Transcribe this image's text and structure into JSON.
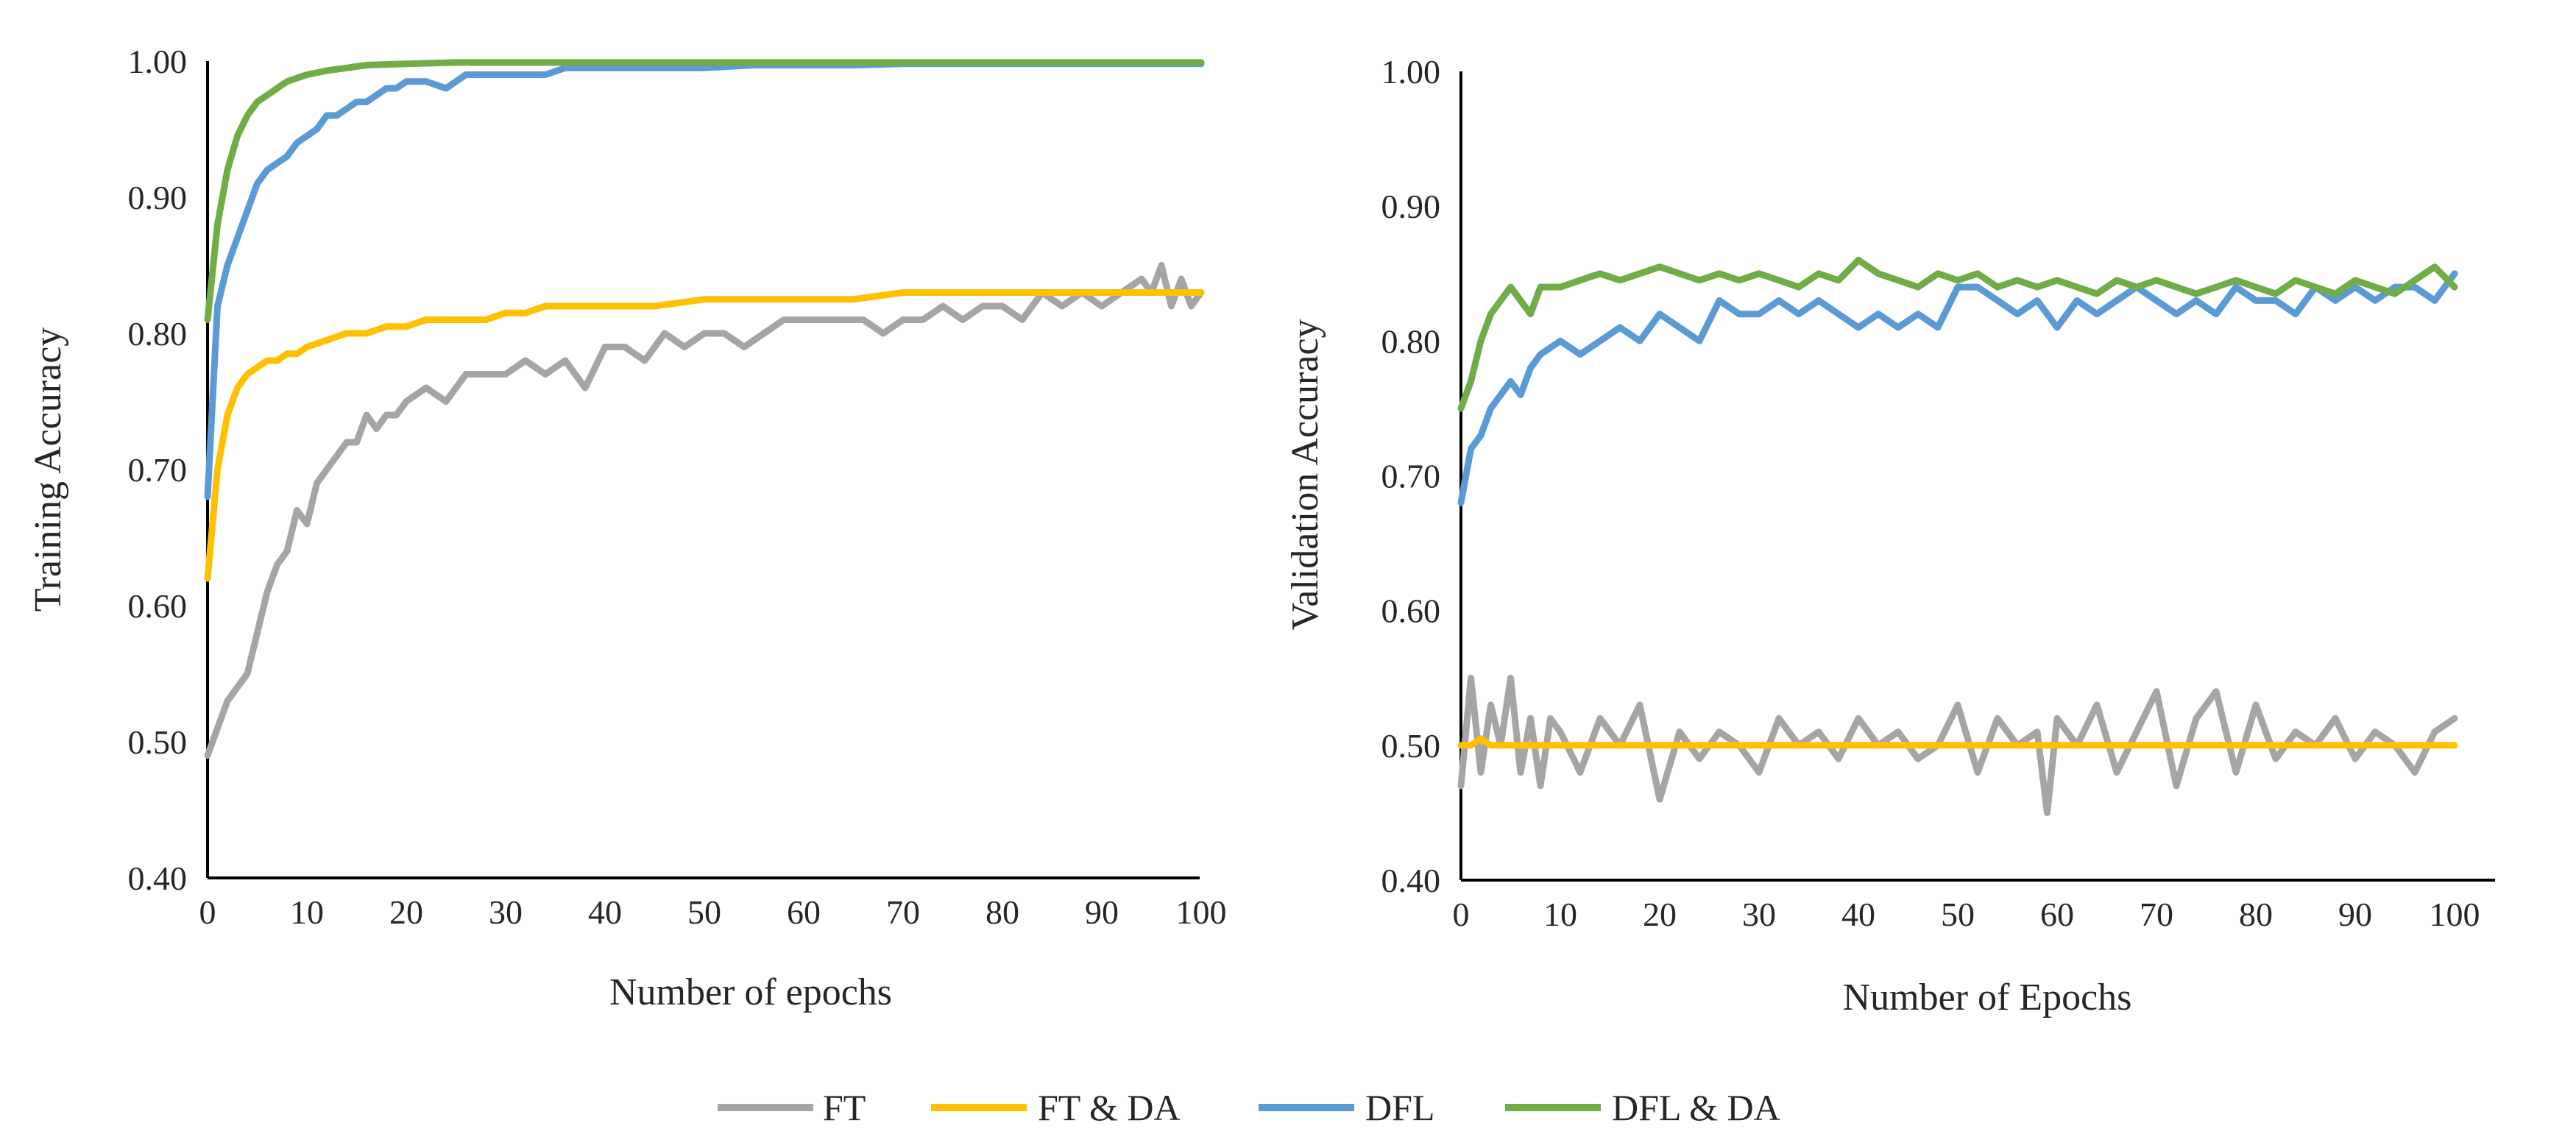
{
  "chart_data": [
    {
      "type": "line",
      "xlabel": "Number of epochs",
      "ylabel": "Training Accuracy",
      "xlim": [
        0,
        100
      ],
      "ylim": [
        0.4,
        1.0
      ],
      "xticks": [
        "0",
        "10",
        "20",
        "30",
        "40",
        "50",
        "60",
        "70",
        "80",
        "90",
        "100"
      ],
      "yticks": [
        "0.40",
        "0.50",
        "0.60",
        "0.70",
        "0.80",
        "0.90",
        "1.00"
      ],
      "grid": false,
      "series": [
        {
          "name": "FT",
          "color": "#a5a5a5",
          "x": [
            0,
            1,
            2,
            3,
            4,
            5,
            6,
            7,
            8,
            9,
            10,
            11,
            12,
            13,
            14,
            15,
            16,
            17,
            18,
            19,
            20,
            22,
            24,
            26,
            28,
            30,
            32,
            34,
            36,
            38,
            40,
            42,
            44,
            46,
            48,
            50,
            52,
            54,
            56,
            58,
            60,
            62,
            64,
            66,
            68,
            70,
            72,
            74,
            76,
            78,
            80,
            82,
            84,
            86,
            88,
            90,
            92,
            94,
            95,
            96,
            97,
            98,
            99,
            100
          ],
          "values": [
            0.49,
            0.51,
            0.53,
            0.54,
            0.55,
            0.58,
            0.61,
            0.63,
            0.64,
            0.67,
            0.66,
            0.69,
            0.7,
            0.71,
            0.72,
            0.72,
            0.74,
            0.73,
            0.74,
            0.74,
            0.75,
            0.76,
            0.75,
            0.77,
            0.77,
            0.77,
            0.78,
            0.77,
            0.78,
            0.76,
            0.79,
            0.79,
            0.78,
            0.8,
            0.79,
            0.8,
            0.8,
            0.79,
            0.8,
            0.81,
            0.81,
            0.81,
            0.81,
            0.81,
            0.8,
            0.81,
            0.81,
            0.82,
            0.81,
            0.82,
            0.82,
            0.81,
            0.83,
            0.82,
            0.83,
            0.82,
            0.83,
            0.84,
            0.83,
            0.85,
            0.82,
            0.84,
            0.82,
            0.83
          ]
        },
        {
          "name": "FT & DA",
          "color": "#ffc000",
          "x": [
            0,
            1,
            2,
            3,
            4,
            5,
            6,
            7,
            8,
            9,
            10,
            12,
            14,
            16,
            18,
            20,
            22,
            24,
            26,
            28,
            30,
            32,
            34,
            36,
            38,
            40,
            45,
            50,
            55,
            60,
            65,
            70,
            75,
            80,
            85,
            90,
            95,
            100
          ],
          "values": [
            0.62,
            0.7,
            0.74,
            0.76,
            0.77,
            0.775,
            0.78,
            0.78,
            0.785,
            0.785,
            0.79,
            0.795,
            0.8,
            0.8,
            0.805,
            0.805,
            0.81,
            0.81,
            0.81,
            0.81,
            0.815,
            0.815,
            0.82,
            0.82,
            0.82,
            0.82,
            0.82,
            0.825,
            0.825,
            0.825,
            0.825,
            0.83,
            0.83,
            0.83,
            0.83,
            0.83,
            0.83,
            0.83
          ]
        },
        {
          "name": "DFL",
          "color": "#5b9bd5",
          "x": [
            0,
            1,
            2,
            3,
            4,
            5,
            6,
            7,
            8,
            9,
            10,
            11,
            12,
            13,
            14,
            15,
            16,
            17,
            18,
            19,
            20,
            22,
            24,
            26,
            28,
            30,
            32,
            34,
            36,
            38,
            40,
            45,
            50,
            55,
            60,
            65,
            70,
            75,
            80,
            85,
            90,
            95,
            100
          ],
          "values": [
            0.68,
            0.82,
            0.85,
            0.87,
            0.89,
            0.91,
            0.92,
            0.925,
            0.93,
            0.94,
            0.945,
            0.95,
            0.96,
            0.96,
            0.965,
            0.97,
            0.97,
            0.975,
            0.98,
            0.98,
            0.985,
            0.985,
            0.98,
            0.99,
            0.99,
            0.99,
            0.99,
            0.99,
            0.995,
            0.995,
            0.995,
            0.995,
            0.995,
            0.997,
            0.997,
            0.997,
            0.998,
            0.998,
            0.998,
            0.998,
            0.998,
            0.998,
            0.998
          ]
        },
        {
          "name": "DFL & DA",
          "color": "#70ad47",
          "x": [
            0,
            1,
            2,
            3,
            4,
            5,
            6,
            7,
            8,
            10,
            12,
            14,
            16,
            20,
            25,
            30,
            40,
            50,
            60,
            70,
            80,
            90,
            100
          ],
          "values": [
            0.81,
            0.88,
            0.92,
            0.945,
            0.96,
            0.97,
            0.975,
            0.98,
            0.985,
            0.99,
            0.993,
            0.995,
            0.997,
            0.998,
            0.999,
            0.999,
            0.999,
            0.999,
            0.999,
            0.999,
            0.999,
            0.999,
            0.999
          ]
        }
      ]
    },
    {
      "type": "line",
      "xlabel": "Number of Epochs",
      "ylabel": "Validation Accuracy",
      "xlim": [
        0,
        100
      ],
      "ylim": [
        0.4,
        1.0
      ],
      "xticks": [
        "0",
        "10",
        "20",
        "30",
        "40",
        "50",
        "60",
        "70",
        "80",
        "90",
        "100"
      ],
      "yticks": [
        "0.40",
        "0.50",
        "0.60",
        "0.70",
        "0.80",
        "0.90",
        "1.00"
      ],
      "grid": false,
      "series": [
        {
          "name": "FT",
          "color": "#a5a5a5",
          "x": [
            0,
            1,
            2,
            3,
            4,
            5,
            6,
            7,
            8,
            9,
            10,
            12,
            14,
            16,
            18,
            20,
            22,
            24,
            26,
            28,
            30,
            32,
            34,
            36,
            38,
            40,
            42,
            44,
            46,
            48,
            50,
            52,
            54,
            56,
            58,
            59,
            60,
            62,
            64,
            66,
            68,
            70,
            72,
            74,
            76,
            78,
            80,
            82,
            84,
            86,
            88,
            90,
            92,
            94,
            96,
            98,
            100
          ],
          "values": [
            0.47,
            0.55,
            0.48,
            0.53,
            0.5,
            0.55,
            0.48,
            0.52,
            0.47,
            0.52,
            0.51,
            0.48,
            0.52,
            0.5,
            0.53,
            0.46,
            0.51,
            0.49,
            0.51,
            0.5,
            0.48,
            0.52,
            0.5,
            0.51,
            0.49,
            0.52,
            0.5,
            0.51,
            0.49,
            0.5,
            0.53,
            0.48,
            0.52,
            0.5,
            0.51,
            0.45,
            0.52,
            0.5,
            0.53,
            0.48,
            0.51,
            0.54,
            0.47,
            0.52,
            0.54,
            0.48,
            0.53,
            0.49,
            0.51,
            0.5,
            0.52,
            0.49,
            0.51,
            0.5,
            0.48,
            0.51,
            0.52
          ]
        },
        {
          "name": "FT & DA",
          "color": "#ffc000",
          "x": [
            0,
            1,
            2,
            3,
            4,
            5,
            10,
            20,
            30,
            40,
            50,
            60,
            70,
            80,
            90,
            100
          ],
          "values": [
            0.5,
            0.5,
            0.505,
            0.5,
            0.5,
            0.5,
            0.5,
            0.5,
            0.5,
            0.5,
            0.5,
            0.5,
            0.5,
            0.5,
            0.5,
            0.5
          ]
        },
        {
          "name": "DFL",
          "color": "#5b9bd5",
          "x": [
            0,
            1,
            2,
            3,
            4,
            5,
            6,
            7,
            8,
            10,
            12,
            14,
            16,
            18,
            20,
            22,
            24,
            26,
            28,
            30,
            32,
            34,
            36,
            38,
            40,
            42,
            44,
            46,
            48,
            50,
            52,
            54,
            56,
            58,
            60,
            62,
            64,
            66,
            68,
            70,
            72,
            74,
            76,
            78,
            80,
            82,
            84,
            86,
            88,
            90,
            92,
            94,
            96,
            98,
            100
          ],
          "values": [
            0.68,
            0.72,
            0.73,
            0.75,
            0.76,
            0.77,
            0.76,
            0.78,
            0.79,
            0.8,
            0.79,
            0.8,
            0.81,
            0.8,
            0.82,
            0.81,
            0.8,
            0.83,
            0.82,
            0.82,
            0.83,
            0.82,
            0.83,
            0.82,
            0.81,
            0.82,
            0.81,
            0.82,
            0.81,
            0.84,
            0.84,
            0.83,
            0.82,
            0.83,
            0.81,
            0.83,
            0.82,
            0.83,
            0.84,
            0.83,
            0.82,
            0.83,
            0.82,
            0.84,
            0.83,
            0.83,
            0.82,
            0.84,
            0.83,
            0.84,
            0.83,
            0.84,
            0.84,
            0.83,
            0.85
          ]
        },
        {
          "name": "DFL & DA",
          "color": "#70ad47",
          "x": [
            0,
            1,
            2,
            3,
            4,
            5,
            6,
            7,
            8,
            10,
            12,
            14,
            16,
            18,
            20,
            22,
            24,
            26,
            28,
            30,
            32,
            34,
            36,
            38,
            40,
            42,
            44,
            46,
            48,
            50,
            52,
            54,
            56,
            58,
            60,
            62,
            64,
            66,
            68,
            70,
            72,
            74,
            76,
            78,
            80,
            82,
            84,
            86,
            88,
            90,
            92,
            94,
            96,
            98,
            100
          ],
          "values": [
            0.75,
            0.77,
            0.8,
            0.82,
            0.83,
            0.84,
            0.83,
            0.82,
            0.84,
            0.84,
            0.845,
            0.85,
            0.845,
            0.85,
            0.855,
            0.85,
            0.845,
            0.85,
            0.845,
            0.85,
            0.845,
            0.84,
            0.85,
            0.845,
            0.86,
            0.85,
            0.845,
            0.84,
            0.85,
            0.845,
            0.85,
            0.84,
            0.845,
            0.84,
            0.845,
            0.84,
            0.835,
            0.845,
            0.84,
            0.845,
            0.84,
            0.835,
            0.84,
            0.845,
            0.84,
            0.835,
            0.845,
            0.84,
            0.835,
            0.845,
            0.84,
            0.835,
            0.845,
            0.855,
            0.84
          ]
        }
      ]
    }
  ],
  "legend": {
    "placement": "bottom-center",
    "entries": [
      {
        "label": "FT",
        "color": "#a5a5a5"
      },
      {
        "label": "FT & DA",
        "color": "#ffc000"
      },
      {
        "label": "DFL",
        "color": "#5b9bd5"
      },
      {
        "label": "DFL & DA",
        "color": "#70ad47"
      }
    ]
  }
}
